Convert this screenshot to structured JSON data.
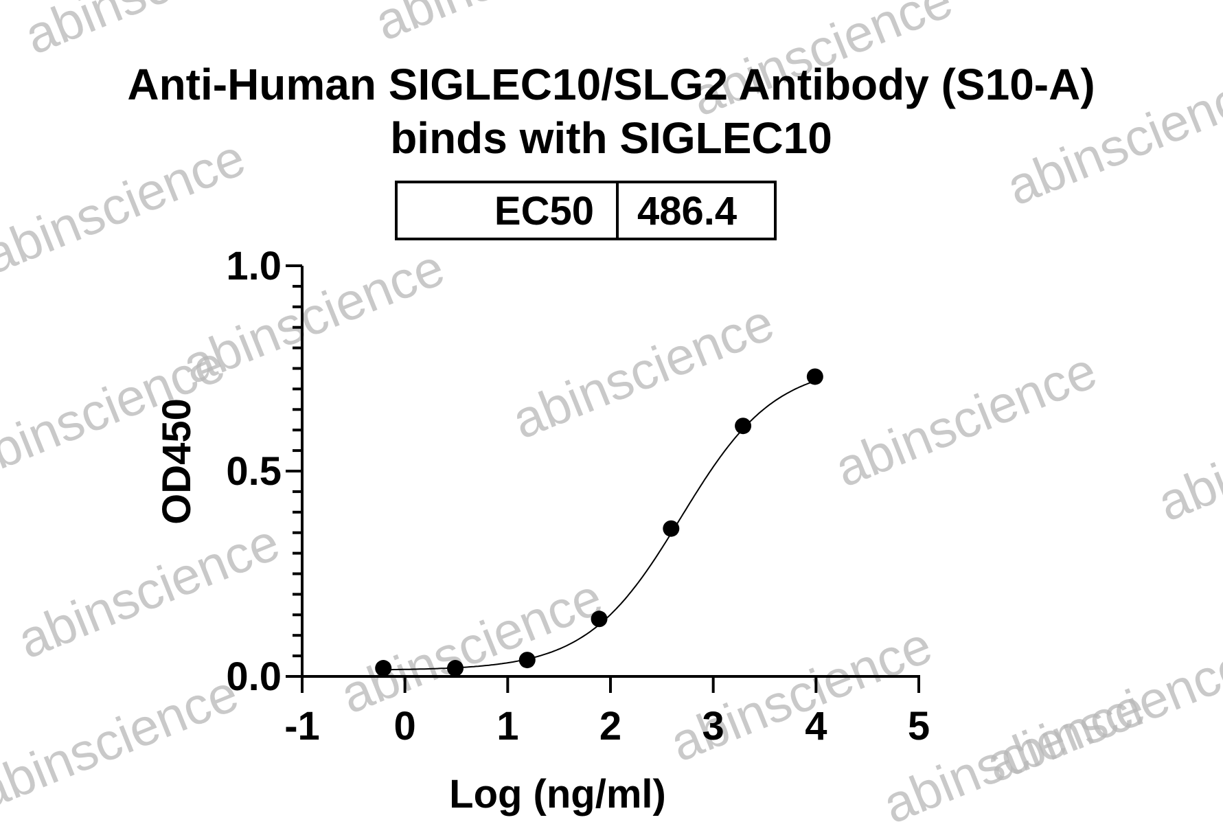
{
  "chart_data": {
    "type": "scatter",
    "title_line1": "Anti-Human SIGLEC10/SLG2 Antibody (S10-A)",
    "title_line2": "binds with SIGLEC10",
    "xlabel": "Log (ng/ml)",
    "ylabel": "OD450",
    "xlim": [
      -1,
      5
    ],
    "ylim": [
      0,
      1.0
    ],
    "x_ticks": [
      "-1",
      "0",
      "1",
      "2",
      "3",
      "4",
      "5"
    ],
    "y_ticks": [
      "0.0",
      "0.5",
      "1.0"
    ],
    "x_tick_values": [
      -1,
      0,
      1,
      2,
      3,
      4,
      5
    ],
    "y_tick_values": [
      0,
      0.5,
      1.0
    ],
    "y_minor_step": 0.05,
    "grid": false,
    "ec50_table": {
      "label": "EC50",
      "value": "486.4"
    },
    "series": [
      {
        "marker": "filled-circle",
        "color": "#000000",
        "x": [
          -0.21,
          0.49,
          1.19,
          1.89,
          2.59,
          3.29,
          3.99
        ],
        "y": [
          0.02,
          0.02,
          0.04,
          0.14,
          0.36,
          0.61,
          0.73
        ]
      }
    ],
    "fit_curve": {
      "type": "4PL",
      "color": "#000000",
      "bottom": 0.015,
      "top": 0.76,
      "log_ec50": 2.687,
      "hill": 0.95
    }
  },
  "watermark": {
    "text": "abinscience",
    "color": "#b8b8b8"
  }
}
